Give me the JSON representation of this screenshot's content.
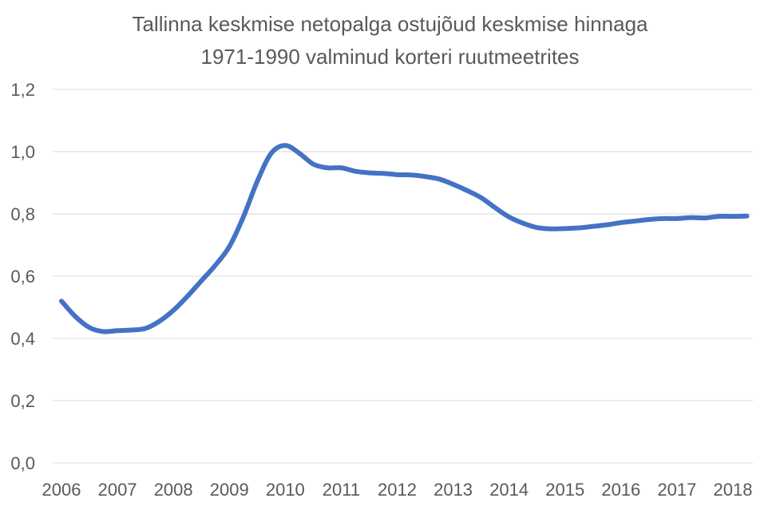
{
  "chart_data": {
    "type": "line",
    "title_lines": [
      "Tallinna keskmise netopalga ostujõud keskmise hinnaga",
      "1971-1990 valminud korteri ruutmeetrites"
    ],
    "xlabel": "",
    "ylabel": "",
    "ylim": [
      0,
      1.2
    ],
    "xlim": [
      2006,
      2018
    ],
    "grid": true,
    "legend": "none",
    "line_color": "#4472C4",
    "y_ticks": [
      "0,0",
      "0,2",
      "0,4",
      "0,6",
      "0,8",
      "1,0",
      "1,2"
    ],
    "x_tick_labels": [
      "2006",
      "2007",
      "2008",
      "2009",
      "2010",
      "2011",
      "2012",
      "2013",
      "2014",
      "2015",
      "2016",
      "2017",
      "2018"
    ],
    "series": [
      {
        "x": [
          2006.0,
          2006.25,
          2006.5,
          2006.75,
          2007.0,
          2007.25,
          2007.5,
          2007.75,
          2008.0,
          2008.25,
          2008.5,
          2008.75,
          2009.0,
          2009.25,
          2009.5,
          2009.75,
          2010.0,
          2010.25,
          2010.5,
          2010.75,
          2011.0,
          2011.25,
          2011.5,
          2011.75,
          2012.0,
          2012.25,
          2012.5,
          2012.75,
          2013.0,
          2013.25,
          2013.5,
          2013.75,
          2014.0,
          2014.25,
          2014.5,
          2014.75,
          2015.0,
          2015.25,
          2015.5,
          2015.75,
          2016.0,
          2016.25,
          2016.5,
          2016.75,
          2017.0,
          2017.25,
          2017.5,
          2017.75,
          2018.0,
          2018.25
        ],
        "values": [
          0.52,
          0.47,
          0.435,
          0.422,
          0.425,
          0.427,
          0.432,
          0.455,
          0.49,
          0.535,
          0.585,
          0.635,
          0.695,
          0.79,
          0.905,
          0.995,
          1.02,
          0.995,
          0.96,
          0.948,
          0.948,
          0.937,
          0.932,
          0.93,
          0.926,
          0.925,
          0.92,
          0.912,
          0.895,
          0.875,
          0.852,
          0.82,
          0.79,
          0.77,
          0.756,
          0.752,
          0.753,
          0.755,
          0.76,
          0.765,
          0.772,
          0.777,
          0.782,
          0.785,
          0.785,
          0.788,
          0.787,
          0.792,
          0.792,
          0.793
        ]
      }
    ]
  }
}
